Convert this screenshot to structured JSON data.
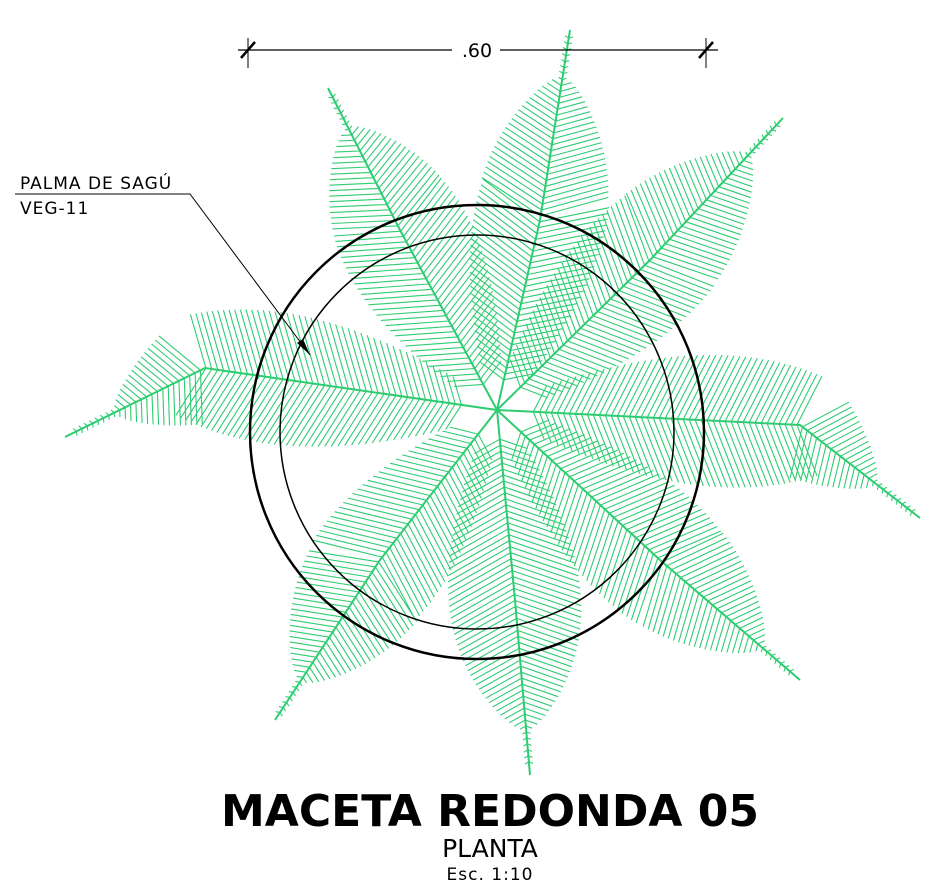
{
  "dimension": ".60",
  "callout": {
    "name": "PALMA DE SAGÚ",
    "code": "VEG-11"
  },
  "title": {
    "main": "MACETA REDONDA 05",
    "view": "PLANTA",
    "scale": "Esc. 1:10"
  }
}
